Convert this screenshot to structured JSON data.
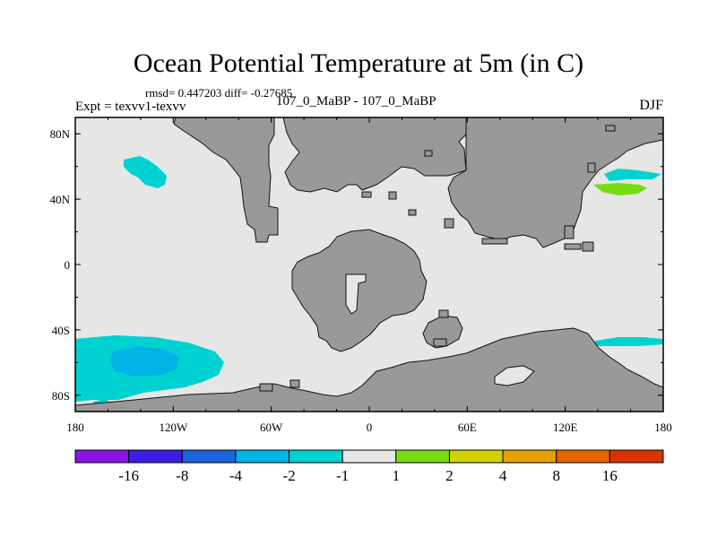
{
  "title": "Ocean Potential Temperature at 5m (in C)",
  "stats_line": "rmsd= 0.447203 diff= -0.27685",
  "experiment_line": "Expt = texvv1-texvv",
  "period_line": "107_0_MaBP - 107_0_MaBP",
  "season": "DJF",
  "map": {
    "lon_ticks": [
      "180",
      "120W",
      "60W",
      "0",
      "60E",
      "120E",
      "180"
    ],
    "lat_ticks": [
      "80N",
      "40N",
      "0",
      "40S",
      "80S"
    ],
    "land_color": "#999999",
    "ocean_color": "#e6e6e6"
  },
  "colorbar": {
    "colors": [
      "#8a14e6",
      "#3c1ee6",
      "#1e64dc",
      "#00b4e6",
      "#00d2d2",
      "#e6e6e6",
      "#78dc14",
      "#d2d200",
      "#e6a000",
      "#e66400",
      "#dc3200"
    ],
    "labels": [
      "-16",
      "-8",
      "-4",
      "-2",
      "-1",
      "1",
      "2",
      "4",
      "8",
      "16"
    ]
  }
}
